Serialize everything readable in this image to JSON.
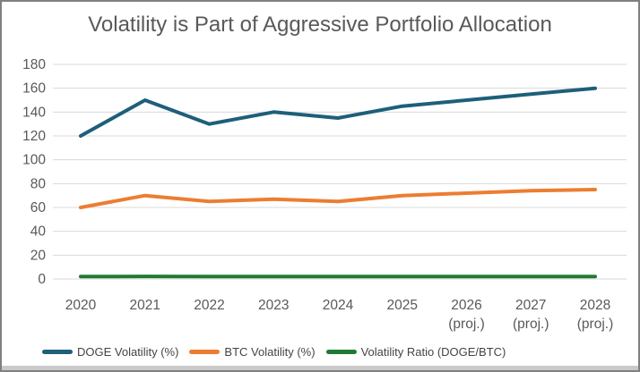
{
  "title": "Volatility is Part of Aggressive Portfolio Allocation",
  "chart_data": {
    "type": "line",
    "categories": [
      "2020",
      "2021",
      "2022",
      "2023",
      "2024",
      "2025",
      "2026 (proj.)",
      "2027 (proj.)",
      "2028 (proj.)"
    ],
    "series": [
      {
        "name": "DOGE Volatility (%)",
        "color": "#1e5f7a",
        "values": [
          120,
          150,
          130,
          140,
          135,
          145,
          150,
          155,
          160
        ]
      },
      {
        "name": "BTC Volatility (%)",
        "color": "#ed7d31",
        "values": [
          60,
          70,
          65,
          67,
          65,
          70,
          72,
          74,
          75
        ]
      },
      {
        "name": "Volatility Ratio (DOGE/BTC)",
        "color": "#1e7b34",
        "values": [
          2.0,
          2.14,
          2.0,
          2.09,
          2.08,
          2.07,
          2.08,
          2.09,
          2.13
        ]
      }
    ],
    "title": "Volatility is Part of Aggressive Portfolio Allocation",
    "xlabel": "",
    "ylabel": "",
    "ylim": [
      0,
      180
    ],
    "y_ticks": [
      0,
      20,
      40,
      60,
      80,
      100,
      120,
      140,
      160,
      180
    ],
    "grid": true,
    "legend_position": "bottom"
  },
  "style": {
    "grid_color": "#d9d9d9",
    "axis_text_color": "#595959",
    "title_color": "#595959",
    "legend_text_color": "#444444",
    "border_color": "#808080",
    "bottom_strip_color": "#c9c9c9",
    "background": "#ffffff",
    "line_width": 4
  }
}
